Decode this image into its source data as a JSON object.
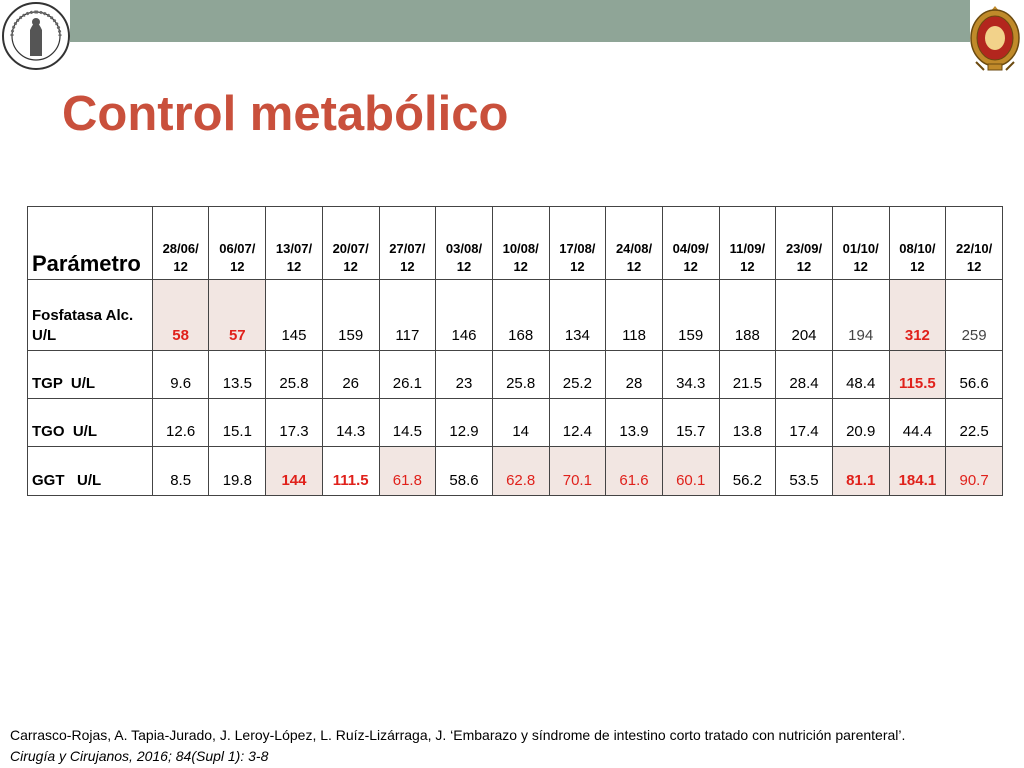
{
  "title": "Control metabólico",
  "table": {
    "header_label": "Parámetro",
    "dates": [
      "28/06/12",
      "06/07/12",
      "13/07/12",
      "20/07/12",
      "27/07/12",
      "03/08/12",
      "10/08/12",
      "17/08/12",
      "24/08/12",
      "04/09/12",
      "11/09/12",
      "23/09/12",
      "01/10/12",
      "08/10/12",
      "22/10/12"
    ],
    "dates_top": [
      "28/06/",
      "06/07/",
      "13/07/",
      "20/07/",
      "27/07/",
      "03/08/",
      "10/08/",
      "17/08/",
      "24/08/",
      "04/09/",
      "11/09/",
      "23/09/",
      "01/10/",
      "08/10/",
      "22/10/"
    ],
    "dates_bottom": [
      "12",
      "12",
      "12",
      "12",
      "12",
      "12",
      "12",
      "12",
      "12",
      "12",
      "12",
      "12",
      "12",
      "12",
      "12"
    ],
    "rows": [
      {
        "label_line1": "Fosfatasa Alc.",
        "label_line2": "U/L",
        "values": [
          "58",
          "57",
          "145",
          "159",
          "117",
          "146",
          "168",
          "134",
          "118",
          "159",
          "188",
          "204",
          "194",
          "312",
          "259"
        ],
        "styles": [
          "hl-redb",
          "hl-redb",
          "",
          "",
          "",
          "",
          "",
          "",
          "",
          "",
          "",
          "",
          "grey",
          "hl-redb",
          "grey"
        ]
      },
      {
        "label_line1": "TGP  U/L",
        "label_line2": "",
        "values": [
          "9.6",
          "13.5",
          "25.8",
          "26",
          "26.1",
          "23",
          "25.8",
          "25.2",
          "28",
          "34.3",
          "21.5",
          "28.4",
          "48.4",
          "115.5",
          "56.6"
        ],
        "styles": [
          "",
          "",
          "",
          "",
          "",
          "",
          "",
          "",
          "",
          "",
          "",
          "",
          "",
          "hl-redb",
          ""
        ]
      },
      {
        "label_line1": "TGO  U/L",
        "label_line2": "",
        "values": [
          "12.6",
          "15.1",
          "17.3",
          "14.3",
          "14.5",
          "12.9",
          "14",
          "12.4",
          "13.9",
          "15.7",
          "13.8",
          "17.4",
          "20.9",
          "44.4",
          "22.5"
        ],
        "styles": [
          "",
          "",
          "",
          "",
          "",
          "",
          "",
          "",
          "",
          "",
          "",
          "",
          "",
          "",
          ""
        ]
      },
      {
        "label_line1": "GGT   U/L",
        "label_line2": "",
        "values": [
          "8.5",
          "19.8",
          "144",
          "111.5",
          "61.8",
          "58.6",
          "62.8",
          "70.1",
          "61.6",
          "60.1",
          "56.2",
          "53.5",
          "81.1",
          "184.1",
          "90.7"
        ],
        "styles": [
          "",
          "",
          "hl-redb",
          "redb",
          "hl-red",
          "",
          "hl-red",
          "hl-red",
          "hl-red",
          "hl-red",
          "",
          "",
          "hl-redb",
          "hl-redb",
          "hl-red"
        ]
      }
    ]
  },
  "reference": {
    "authors": "Carrasco-Rojas, A. Tapia-Jurado, J. Leroy-López, L. Ruíz-Lizárraga, J. ‘Embarazo y síndrome de intestino corto tratado con nutrición parenteral’.",
    "journal": "Cirugía y Cirujanos, 2016; 84(Supl 1): 3-8"
  },
  "colors": {
    "title": "#c9503c",
    "band": "#8fa597",
    "highlight_bg": "#f2e6e2",
    "highlight_text": "#e0211b"
  },
  "logos": {
    "left": "seal-icon",
    "right": "coat-of-arms-icon"
  }
}
